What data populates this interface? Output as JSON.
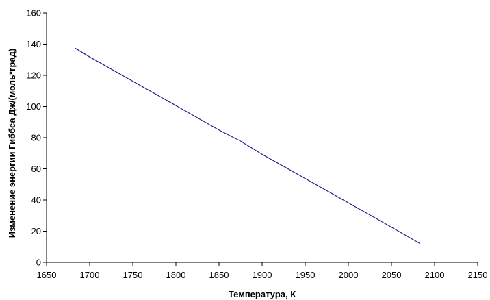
{
  "chart_data": {
    "type": "line",
    "title": "",
    "xlabel": "Температура, К",
    "ylabel": "Изменение энергии Гиббса Дж/(моль*град)",
    "xlim": [
      1650,
      2150
    ],
    "ylim": [
      0,
      160
    ],
    "x_ticks": [
      1650,
      1700,
      1750,
      1800,
      1850,
      1900,
      1950,
      2000,
      2050,
      2100,
      2150
    ],
    "y_ticks": [
      0,
      20,
      40,
      60,
      80,
      100,
      120,
      140,
      160
    ],
    "grid": false,
    "legend": "none",
    "series": [
      {
        "color": "#1f1f8f",
        "x": [
          1683,
          1700,
          1750,
          1800,
          1850,
          1875,
          1900,
          1950,
          2000,
          2050,
          2083
        ],
        "y": [
          137.5,
          131.8,
          116.2,
          100.6,
          84.9,
          77.8,
          69.3,
          53.8,
          38.2,
          22.6,
          12.1
        ]
      }
    ]
  }
}
